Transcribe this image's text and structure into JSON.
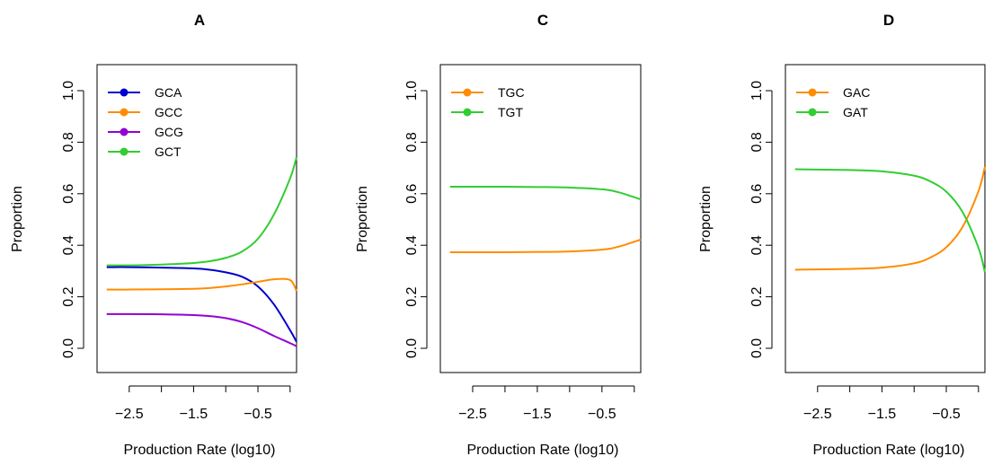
{
  "chart_data": [
    {
      "type": "line",
      "title": "A",
      "xlabel": "Production Rate (log10)",
      "ylabel": "Proportion",
      "xlim": [
        -3.0,
        0.1
      ],
      "ylim": [
        0.0,
        1.0
      ],
      "xticks": [
        -2.5,
        -2.0,
        -1.5,
        -1.0,
        -0.5,
        0.0
      ],
      "xtick_labels": [
        "−2.5",
        "",
        "−1.5",
        "",
        "−0.5",
        ""
      ],
      "yticks": [
        0.0,
        0.2,
        0.4,
        0.6,
        0.8,
        1.0
      ],
      "ytick_labels": [
        "0.0",
        "0.2",
        "0.4",
        "0.6",
        "0.8",
        "1.0"
      ],
      "grid": false,
      "legend": "top-left",
      "x": [
        -2.85,
        -2.5,
        -2.0,
        -1.5,
        -1.25,
        -1.0,
        -0.75,
        -0.5,
        -0.25,
        0.0,
        0.1
      ],
      "series": [
        {
          "name": "GCA",
          "color": "#0000CD",
          "values": [
            0.315,
            0.315,
            0.313,
            0.31,
            0.305,
            0.295,
            0.278,
            0.24,
            0.17,
            0.07,
            0.025
          ]
        },
        {
          "name": "GCC",
          "color": "#FF8C00",
          "values": [
            0.228,
            0.228,
            0.229,
            0.231,
            0.234,
            0.24,
            0.248,
            0.258,
            0.268,
            0.265,
            0.222
          ]
        },
        {
          "name": "GCG",
          "color": "#9400D3",
          "values": [
            0.133,
            0.133,
            0.132,
            0.129,
            0.125,
            0.117,
            0.102,
            0.078,
            0.048,
            0.02,
            0.008
          ]
        },
        {
          "name": "GCT",
          "color": "#32CD32",
          "values": [
            0.322,
            0.322,
            0.325,
            0.331,
            0.338,
            0.351,
            0.375,
            0.425,
            0.52,
            0.66,
            0.742
          ]
        }
      ]
    },
    {
      "type": "line",
      "title": "C",
      "xlabel": "Production Rate (log10)",
      "ylabel": "Proportion",
      "xlim": [
        -3.0,
        0.1
      ],
      "ylim": [
        0.0,
        1.0
      ],
      "xticks": [
        -2.5,
        -2.0,
        -1.5,
        -1.0,
        -0.5,
        0.0
      ],
      "xtick_labels": [
        "−2.5",
        "",
        "−1.5",
        "",
        "−0.5",
        ""
      ],
      "yticks": [
        0.0,
        0.2,
        0.4,
        0.6,
        0.8,
        1.0
      ],
      "ytick_labels": [
        "0.0",
        "0.2",
        "0.4",
        "0.6",
        "0.8",
        "1.0"
      ],
      "grid": false,
      "legend": "top-left",
      "x": [
        -2.85,
        -2.0,
        -1.5,
        -1.0,
        -0.5,
        -0.25,
        0.1
      ],
      "series": [
        {
          "name": "TGC",
          "color": "#FF8C00",
          "values": [
            0.373,
            0.373,
            0.374,
            0.376,
            0.383,
            0.394,
            0.422
          ]
        },
        {
          "name": "TGT",
          "color": "#32CD32",
          "values": [
            0.627,
            0.627,
            0.626,
            0.624,
            0.617,
            0.606,
            0.578
          ]
        }
      ]
    },
    {
      "type": "line",
      "title": "D",
      "xlabel": "Production Rate (log10)",
      "ylabel": "Proportion",
      "xlim": [
        -3.0,
        0.1
      ],
      "ylim": [
        0.0,
        1.0
      ],
      "xticks": [
        -2.5,
        -2.0,
        -1.5,
        -1.0,
        -0.5,
        0.0
      ],
      "xtick_labels": [
        "−2.5",
        "",
        "−1.5",
        "",
        "−0.5",
        ""
      ],
      "yticks": [
        0.0,
        0.2,
        0.4,
        0.6,
        0.8,
        1.0
      ],
      "ytick_labels": [
        "0.0",
        "0.2",
        "0.4",
        "0.6",
        "0.8",
        "1.0"
      ],
      "grid": false,
      "legend": "top-left",
      "x": [
        -2.85,
        -2.0,
        -1.5,
        -1.0,
        -0.75,
        -0.5,
        -0.25,
        0.0,
        0.1
      ],
      "series": [
        {
          "name": "GAC",
          "color": "#FF8C00",
          "values": [
            0.305,
            0.308,
            0.313,
            0.33,
            0.352,
            0.392,
            0.47,
            0.61,
            0.705
          ]
        },
        {
          "name": "GAT",
          "color": "#32CD32",
          "values": [
            0.695,
            0.692,
            0.687,
            0.67,
            0.648,
            0.608,
            0.53,
            0.39,
            0.295
          ]
        }
      ]
    }
  ]
}
